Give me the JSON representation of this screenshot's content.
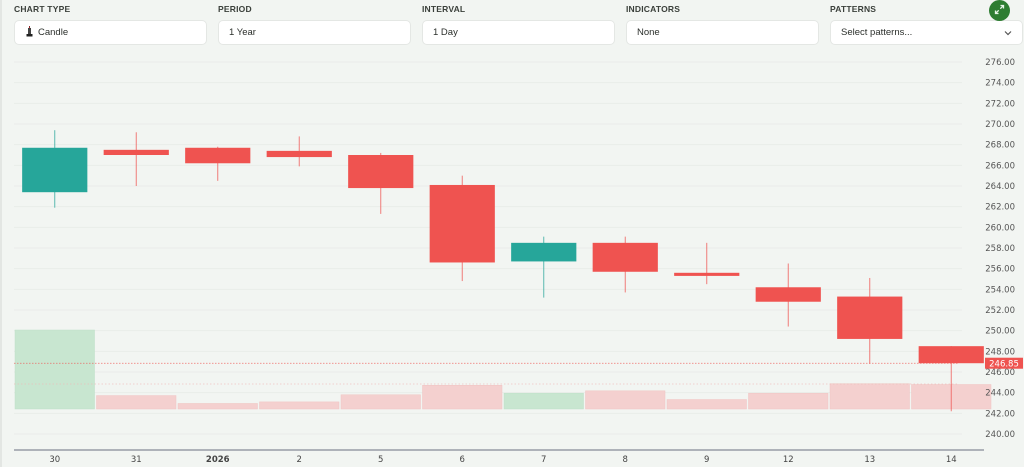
{
  "controls": {
    "chart_type": {
      "label": "CHART TYPE",
      "value": "Candle",
      "icon": "candle-icon"
    },
    "period": {
      "label": "PERIOD",
      "value": "1 Year"
    },
    "interval": {
      "label": "INTERVAL",
      "value": "1 Day"
    },
    "indicators": {
      "label": "INDICATORS",
      "value": "None"
    },
    "patterns": {
      "label": "PATTERNS",
      "placeholder": "Select patterns...",
      "icon": "chevron-down-icon"
    },
    "fullscreen": {
      "icon": "expand-icon",
      "color": "#2e7d32"
    }
  },
  "colors": {
    "up": "#26a69a",
    "down": "#ef5350",
    "volume_up": "#c8e6d0",
    "volume_down": "#f4d0cf",
    "price_tag": "#ef5350"
  },
  "chart_data": {
    "type": "candlestick",
    "title": "",
    "xlabel": "",
    "ylabel": "",
    "categories": [
      "30",
      "31",
      "2026",
      "2",
      "5",
      "6",
      "7",
      "8",
      "9",
      "12",
      "13",
      "14"
    ],
    "series": [
      {
        "name": "open",
        "values": [
          263.4,
          267.5,
          267.7,
          267.4,
          267.0,
          264.1,
          256.7,
          258.5,
          255.6,
          254.2,
          253.3,
          248.5
        ]
      },
      {
        "name": "high",
        "values": [
          269.4,
          269.2,
          267.8,
          268.8,
          267.2,
          265.0,
          259.1,
          259.1,
          258.5,
          256.5,
          255.1,
          248.5
        ]
      },
      {
        "name": "low",
        "values": [
          261.9,
          264.0,
          264.5,
          265.9,
          261.3,
          254.8,
          253.2,
          253.7,
          254.5,
          250.4,
          246.8,
          242.2
        ]
      },
      {
        "name": "close",
        "values": [
          267.7,
          267.0,
          266.2,
          266.8,
          263.8,
          256.6,
          258.5,
          255.7,
          255.3,
          252.8,
          249.2,
          246.85
        ]
      },
      {
        "name": "volume_rel",
        "values": [
          100,
          17,
          7,
          9,
          18,
          30,
          20,
          23,
          12,
          20,
          32,
          31
        ]
      }
    ],
    "direction": [
      "up",
      "down",
      "down",
      "down",
      "down",
      "down",
      "up",
      "down",
      "down",
      "down",
      "down",
      "down"
    ],
    "y_ticks": [
      "276.00",
      "274.00",
      "272.00",
      "270.00",
      "268.00",
      "266.00",
      "264.00",
      "262.00",
      "260.00",
      "258.00",
      "256.00",
      "254.00",
      "252.00",
      "250.00",
      "248.00",
      "246.00",
      "244.00",
      "242.00",
      "240.00"
    ],
    "ylim": [
      240,
      276
    ],
    "last_price": "246.85",
    "grid": true,
    "legend": "none"
  }
}
